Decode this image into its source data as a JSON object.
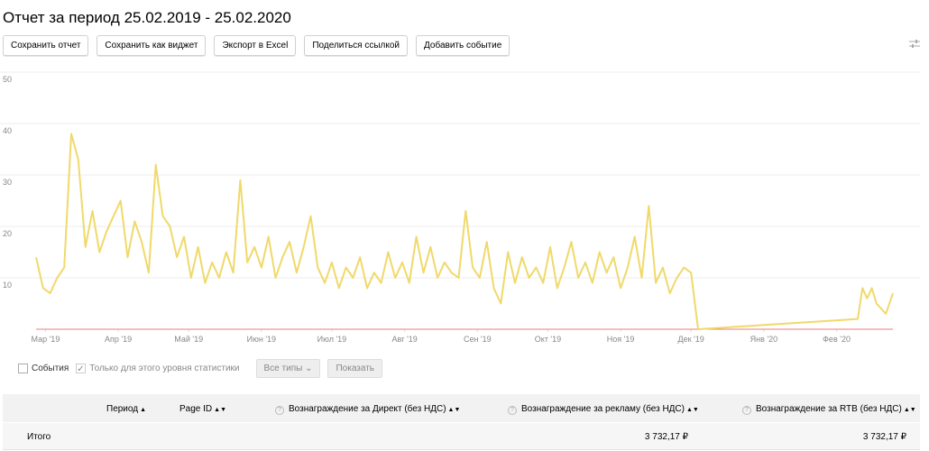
{
  "header": {
    "title": "Отчет за период 25.02.2019 - 25.02.2020"
  },
  "buttons": [
    "Сохранить отчет",
    "Сохранить как виджет",
    "Экспорт в Excel",
    "Поделиться ссылкой",
    "Добавить событие"
  ],
  "chart_data": {
    "type": "line",
    "x": [
      0,
      3,
      6,
      9,
      12,
      15,
      18,
      21,
      24,
      27,
      30,
      33,
      36,
      39,
      42,
      45,
      48,
      51,
      54,
      57,
      60,
      63,
      66,
      69,
      72,
      75,
      78,
      81,
      84,
      87,
      90,
      93,
      96,
      99,
      102,
      105,
      108,
      111,
      114,
      117,
      120,
      123,
      126,
      129,
      132,
      135,
      138,
      141,
      144,
      147,
      150,
      153,
      156,
      159,
      162,
      165,
      168,
      171,
      174,
      177,
      180,
      183,
      186,
      189,
      192,
      195,
      198,
      201,
      204,
      207,
      210,
      213,
      216,
      219,
      222,
      225,
      228,
      231,
      234,
      237,
      240,
      243,
      246,
      249,
      252,
      255,
      258,
      261,
      264,
      267,
      270,
      273,
      276,
      279,
      282,
      350,
      352,
      354,
      356,
      358,
      360,
      362,
      365
    ],
    "series": [
      {
        "color": "#f0d96a",
        "values": [
          14,
          8,
          7,
          10,
          12,
          38,
          33,
          16,
          23,
          15,
          19,
          22,
          25,
          14,
          21,
          17,
          11,
          32,
          22,
          20,
          14,
          18,
          10,
          16,
          9,
          13,
          10,
          15,
          11,
          29,
          13,
          16,
          12,
          18,
          10,
          14,
          17,
          11,
          16,
          22,
          12,
          9,
          13,
          8,
          12,
          10,
          14,
          8,
          11,
          9,
          15,
          10,
          13,
          9,
          18,
          11,
          16,
          10,
          13,
          11,
          10,
          23,
          12,
          10,
          17,
          8,
          5,
          15,
          9,
          14,
          10,
          12,
          9,
          16,
          8,
          12,
          17,
          10,
          13,
          9,
          15,
          11,
          14,
          8,
          12,
          18,
          10,
          24,
          9,
          12,
          7,
          10,
          12,
          11,
          0,
          2,
          8,
          6,
          8,
          5,
          4,
          3,
          7
        ]
      }
    ],
    "xlim": [
      0,
      365
    ],
    "xticks": [
      {
        "value": 4,
        "label": "Мар '19"
      },
      {
        "value": 35,
        "label": "Апр '19"
      },
      {
        "value": 65,
        "label": "Май '19"
      },
      {
        "value": 96,
        "label": "Июн '19"
      },
      {
        "value": 126,
        "label": "Июл '19"
      },
      {
        "value": 157,
        "label": "Авг '19"
      },
      {
        "value": 188,
        "label": "Сен '19"
      },
      {
        "value": 218,
        "label": "Окт '19"
      },
      {
        "value": 249,
        "label": "Ноя '19"
      },
      {
        "value": 279,
        "label": "Дек '19"
      },
      {
        "value": 310,
        "label": "Янв '20"
      },
      {
        "value": 341,
        "label": "Фев '20"
      }
    ],
    "ylim": [
      0,
      50
    ],
    "yticks": [
      10,
      20,
      30,
      40,
      50
    ],
    "grid": true,
    "baseline_color": "#e87c7c"
  },
  "filters": {
    "events": "События",
    "level": "Только для этого уровня статистики",
    "types": "Все типы",
    "show": "Показать"
  },
  "table": {
    "headers": [
      "Период",
      "Page ID",
      "Вознаграждение за Директ (без НДС)",
      "Вознаграждение за рекламу (без НДС)",
      "Вознаграждение за RTB (без НДС)"
    ],
    "rows": [
      [
        "Итого",
        "3 732,17 ₽",
        "3 732,17 ₽"
      ]
    ]
  }
}
